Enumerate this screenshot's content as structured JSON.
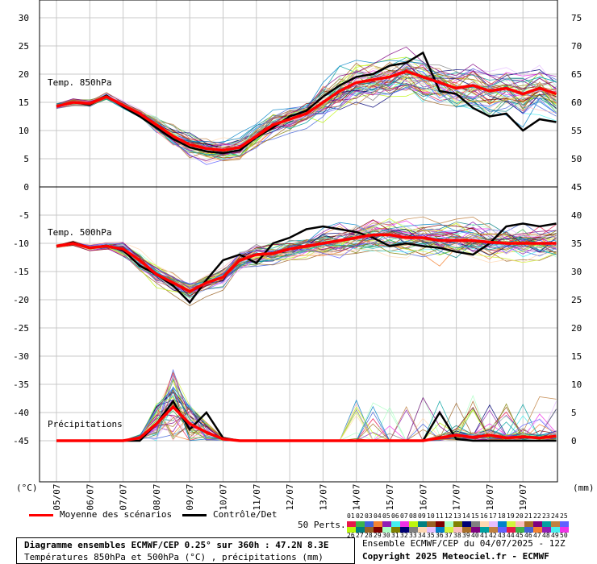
{
  "chart_data": [
    {
      "type": "line",
      "title": "Temp. 850hPa",
      "y_left_ticks": [
        0,
        5,
        10,
        15,
        20,
        25,
        30
      ],
      "y_right_ticks": [
        50,
        55,
        60,
        65,
        70,
        75
      ],
      "ylim": [
        0,
        30
      ],
      "x_labels": [
        "05/07",
        "06/07",
        "07/07",
        "08/07",
        "09/07",
        "10/07",
        "11/07",
        "12/07",
        "13/07",
        "14/07",
        "15/07",
        "16/07",
        "17/07",
        "18/07",
        "19/07"
      ],
      "series": [
        {
          "name": "Moyenne des scénarios",
          "color": "#ff0000",
          "x": [
            0,
            0.5,
            1,
            1.5,
            2,
            2.5,
            3,
            3.5,
            4,
            4.5,
            5,
            5.5,
            6,
            6.5,
            7,
            7.5,
            8,
            8.5,
            9,
            9.5,
            10,
            10.5,
            11,
            11.5,
            12,
            12.5,
            13,
            13.5,
            14,
            14.5,
            15
          ],
          "values": [
            14.3,
            15,
            14.8,
            16,
            14.5,
            13,
            11,
            9,
            7.5,
            6.8,
            6.5,
            7,
            9,
            11,
            12,
            13,
            15,
            17,
            18.5,
            19,
            19.5,
            20.5,
            19.5,
            18.5,
            17.5,
            18,
            17,
            17.5,
            16.5,
            17.5,
            16.5
          ]
        },
        {
          "name": "Contrôle/Det",
          "color": "#000000",
          "x": [
            0,
            0.5,
            1,
            1.5,
            2,
            2.5,
            3,
            3.5,
            4,
            4.5,
            5,
            5.5,
            6,
            6.5,
            7,
            7.5,
            8,
            8.5,
            9,
            9.5,
            10,
            10.5,
            11,
            11.5,
            12,
            12.5,
            13,
            13.5,
            14,
            14.5,
            15
          ],
          "values": [
            14.3,
            15,
            14.6,
            16.2,
            14.2,
            12.5,
            10.5,
            8.5,
            7,
            6.3,
            6,
            6.5,
            8.8,
            10.5,
            12.5,
            13.5,
            16,
            18,
            19.5,
            20,
            21.5,
            22,
            23.8,
            17,
            16.5,
            14,
            12.5,
            13,
            10,
            12,
            11.5
          ]
        }
      ]
    },
    {
      "type": "line",
      "title": "Temp. 500hPa",
      "y_left_ticks": [
        -45,
        -40,
        -35,
        -30,
        -25,
        -20,
        -15,
        -10,
        -5
      ],
      "y_right_ticks": [
        0,
        5,
        10,
        15,
        20,
        25,
        30,
        35,
        40,
        45
      ],
      "ylim": [
        -50,
        0
      ],
      "series": [
        {
          "name": "Moyenne des scénarios",
          "color": "#ff0000",
          "x": [
            0,
            0.5,
            1,
            1.5,
            2,
            2.5,
            3,
            3.5,
            4,
            4.5,
            5,
            5.5,
            6,
            6.5,
            7,
            7.5,
            8,
            8.5,
            9,
            9.5,
            10,
            10.5,
            11,
            11.5,
            12,
            12.5,
            13,
            13.5,
            14,
            14.5,
            15
          ],
          "values": [
            -10.5,
            -10,
            -10.8,
            -10.5,
            -11,
            -13,
            -15.5,
            -17,
            -18.5,
            -17,
            -16,
            -13,
            -12,
            -11.8,
            -11,
            -10.5,
            -10,
            -9.5,
            -9,
            -8.5,
            -8.5,
            -9,
            -9,
            -9.5,
            -9.5,
            -9.5,
            -9.8,
            -10,
            -10,
            -10,
            -10
          ]
        },
        {
          "name": "Contrôle/Det",
          "color": "#000000",
          "x": [
            0,
            0.5,
            1,
            1.5,
            2,
            2.5,
            3,
            3.5,
            4,
            4.5,
            5,
            5.5,
            6,
            6.5,
            7,
            7.5,
            8,
            8.5,
            9,
            9.5,
            10,
            10.5,
            11,
            11.5,
            12,
            12.5,
            13,
            13.5,
            14,
            14.5,
            15
          ],
          "values": [
            -10.5,
            -9.8,
            -10.8,
            -10.4,
            -11.2,
            -14,
            -15.5,
            -17.5,
            -20.5,
            -16.5,
            -13,
            -12,
            -13.5,
            -10,
            -9,
            -7.5,
            -7,
            -7.5,
            -8,
            -9,
            -10.5,
            -10,
            -10.5,
            -10.8,
            -11.5,
            -12,
            -10,
            -7,
            -6.5,
            -7,
            -6.5
          ]
        }
      ]
    },
    {
      "type": "line",
      "title": "Précipitations",
      "unit": "(mm)",
      "series": [
        {
          "name": "Moyenne des scénarios",
          "color": "#ff0000",
          "x": [
            0,
            0.5,
            1,
            1.5,
            2,
            2.5,
            3,
            3.5,
            4,
            4.5,
            5,
            5.5,
            6,
            6.5,
            7,
            7.5,
            8,
            8.5,
            9,
            9.5,
            10,
            10.5,
            11,
            11.5,
            12,
            12.5,
            13,
            13.5,
            14,
            14.5,
            15
          ],
          "values": [
            0,
            0,
            0,
            0,
            0,
            0.5,
            3,
            6,
            3,
            1.5,
            0.3,
            0,
            0,
            0,
            0,
            0,
            0,
            0,
            0,
            0,
            0,
            0,
            0,
            0.5,
            1,
            0.6,
            1,
            0.5,
            0.7,
            0.5,
            0.8
          ]
        },
        {
          "name": "Contrôle/Det",
          "color": "#000000",
          "x": [
            0,
            0.5,
            1,
            1.5,
            2,
            2.5,
            3,
            3.5,
            4,
            4.5,
            5,
            5.5,
            6,
            6.5,
            7,
            7.5,
            8,
            8.5,
            9,
            9.5,
            10,
            10.5,
            11,
            11.5,
            12,
            12.5,
            13,
            13.5,
            14,
            14.5,
            15
          ],
          "values": [
            0,
            0,
            0,
            0,
            0,
            0,
            3,
            7,
            2,
            5,
            0.5,
            0,
            0,
            0,
            0,
            0,
            0,
            0,
            0,
            0,
            0,
            0,
            0,
            5,
            0.3,
            0,
            0,
            0,
            0,
            0,
            0
          ]
        }
      ]
    }
  ],
  "units": {
    "left": "(°C)",
    "right": "(mm)"
  },
  "legend": {
    "mean_label": "Moyenne des scénarios",
    "control_label": "Contrôle/Det",
    "perts_label": "50 Perts.",
    "pert_numbers_top": [
      "01",
      "02",
      "03",
      "04",
      "05",
      "06",
      "07",
      "08",
      "09",
      "10",
      "11",
      "12",
      "13",
      "14",
      "15",
      "16",
      "17",
      "18",
      "19",
      "20",
      "21",
      "22",
      "23",
      "24",
      "25"
    ],
    "pert_numbers_bottom": [
      "26",
      "27",
      "28",
      "29",
      "30",
      "31",
      "32",
      "33",
      "34",
      "35",
      "36",
      "37",
      "38",
      "39",
      "40",
      "41",
      "42",
      "43",
      "44",
      "45",
      "46",
      "47",
      "48",
      "49",
      "50"
    ]
  },
  "footer": {
    "title_line1": "Diagramme ensembles ECMWF/CEP 0.25° sur 360h : 47.2N 8.3E",
    "title_line2": "Températures 850hPa et 500hPa (°C) , précipitations (mm)",
    "run_info": "Ensemble ECMWF/CEP du 04/07/2025 - 12Z",
    "copyright": "Copyright 2025 Meteociel.fr - ECMWF"
  },
  "colors": {
    "mean": "#ff0000",
    "control": "#000000",
    "grid": "#c8c8c8"
  }
}
